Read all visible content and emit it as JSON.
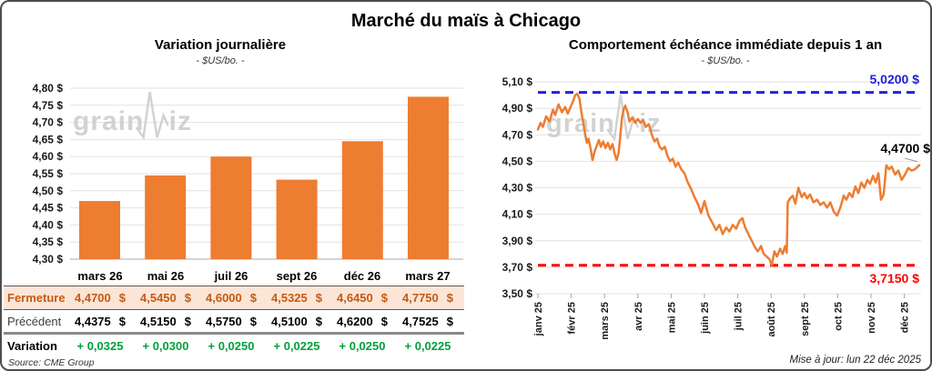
{
  "title": "Marché du maïs à Chicago",
  "watermark": {
    "prefix": "grain",
    "suffix": "iz"
  },
  "colors": {
    "orange": "#ED7D31",
    "peach": "#FBE5D6",
    "brown": "#C55A11",
    "green": "#00A03C",
    "blue": "#2222D6",
    "red": "#FF0000",
    "gridline": "#E2E2E2",
    "baseline": "#ABABAB",
    "tick": "#A6A6A6",
    "leader": "#999999",
    "watermark_gray": "#C8C8C8"
  },
  "left_panel": {
    "title": "Variation journalière",
    "subtitle": "- $US/bo. -",
    "source": "Source: CME Group",
    "table": {
      "columns": [
        "mars 26",
        "mai 26",
        "juil 26",
        "sept 26",
        "déc 26",
        "mars 27"
      ],
      "rows": [
        {
          "key": "fermeture",
          "label": "Fermeture",
          "values": [
            "4,4700 $",
            "4,5450 $",
            "4,6000 $",
            "4,5325 $",
            "4,6450 $",
            "4,7750 $"
          ]
        },
        {
          "key": "precedent",
          "label": "Précédent",
          "values": [
            "4,4375 $",
            "4,5150 $",
            "4,5750 $",
            "4,5100 $",
            "4,6200 $",
            "4,7525 $"
          ]
        },
        {
          "key": "variation",
          "label": "Variation",
          "values": [
            "+ 0,0325",
            "+ 0,0300",
            "+ 0,0250",
            "+ 0,0225",
            "+ 0,0250",
            "+ 0,0225"
          ]
        }
      ]
    }
  },
  "right_panel": {
    "title": "Comportement échéance immédiate depuis 1 an",
    "subtitle": "- $US/bo. -",
    "updated": "Mise à jour: lun 22 déc 2025",
    "annotations": {
      "resistance": "5,0200 $",
      "last": "4,4700 $",
      "support": "3,7150 $"
    }
  },
  "chart_data": [
    {
      "type": "bar",
      "title": "Variation journalière",
      "subtitle": "- $US/bo. -",
      "categories": [
        "mars 26",
        "mai 26",
        "juil 26",
        "sept 26",
        "déc 26",
        "mars 27"
      ],
      "values": [
        4.47,
        4.545,
        4.6,
        4.5325,
        4.645,
        4.775
      ],
      "xlabel": "",
      "ylabel": "$US/bo.",
      "ylim": [
        4.3,
        4.8
      ],
      "ytick_step": 0.05,
      "ytick_labels": [
        "4,80 $",
        "4,75 $",
        "4,70 $",
        "4,65 $",
        "4,60 $",
        "4,55 $",
        "4,50 $",
        "4,45 $",
        "4,40 $",
        "4,35 $",
        "4,30 $"
      ],
      "grid": true,
      "legend": false
    },
    {
      "type": "line",
      "title": "Comportement échéance immédiate depuis 1 an",
      "subtitle": "- $US/bo. -",
      "ylabel": "$US/bo.",
      "x_labels": [
        "janv 25",
        "févr 25",
        "mars 25",
        "avr 25",
        "mai 25",
        "juin 25",
        "juil 25",
        "août 25",
        "sept 25",
        "oct 25",
        "nov 25",
        "déc 25"
      ],
      "ylim": [
        3.5,
        5.1
      ],
      "ytick_step": 0.2,
      "ytick_labels": [
        "5,10 $",
        "4,90 $",
        "4,70 $",
        "4,50 $",
        "4,30 $",
        "4,10 $",
        "3,90 $",
        "3,70 $",
        "3,50 $"
      ],
      "resistance": 5.02,
      "support": 3.715,
      "last_value": 4.47,
      "grid": true,
      "legend": false,
      "points": [
        [
          0.0,
          4.74
        ],
        [
          0.08,
          4.79
        ],
        [
          0.15,
          4.76
        ],
        [
          0.25,
          4.84
        ],
        [
          0.35,
          4.8
        ],
        [
          0.45,
          4.89
        ],
        [
          0.52,
          4.85
        ],
        [
          0.62,
          4.93
        ],
        [
          0.72,
          4.87
        ],
        [
          0.82,
          4.91
        ],
        [
          0.9,
          4.86
        ],
        [
          0.98,
          4.91
        ],
        [
          1.05,
          4.95
        ],
        [
          1.12,
          5.0
        ],
        [
          1.18,
          5.01
        ],
        [
          1.25,
          4.97
        ],
        [
          1.3,
          4.88
        ],
        [
          1.36,
          4.79
        ],
        [
          1.42,
          4.7
        ],
        [
          1.47,
          4.64
        ],
        [
          1.52,
          4.67
        ],
        [
          1.58,
          4.6
        ],
        [
          1.64,
          4.51
        ],
        [
          1.71,
          4.58
        ],
        [
          1.77,
          4.62
        ],
        [
          1.83,
          4.66
        ],
        [
          1.89,
          4.61
        ],
        [
          1.96,
          4.65
        ],
        [
          2.03,
          4.6
        ],
        [
          2.1,
          4.64
        ],
        [
          2.17,
          4.59
        ],
        [
          2.24,
          4.63
        ],
        [
          2.3,
          4.56
        ],
        [
          2.36,
          4.51
        ],
        [
          2.42,
          4.56
        ],
        [
          2.47,
          4.68
        ],
        [
          2.52,
          4.82
        ],
        [
          2.57,
          4.89
        ],
        [
          2.62,
          4.92
        ],
        [
          2.69,
          4.87
        ],
        [
          2.75,
          4.8
        ],
        [
          2.83,
          4.83
        ],
        [
          2.92,
          4.79
        ],
        [
          3.0,
          4.82
        ],
        [
          3.08,
          4.79
        ],
        [
          3.16,
          4.81
        ],
        [
          3.24,
          4.76
        ],
        [
          3.33,
          4.78
        ],
        [
          3.42,
          4.7
        ],
        [
          3.5,
          4.65
        ],
        [
          3.58,
          4.67
        ],
        [
          3.65,
          4.61
        ],
        [
          3.73,
          4.59
        ],
        [
          3.81,
          4.61
        ],
        [
          3.89,
          4.54
        ],
        [
          3.97,
          4.5
        ],
        [
          4.05,
          4.52
        ],
        [
          4.13,
          4.46
        ],
        [
          4.21,
          4.49
        ],
        [
          4.3,
          4.44
        ],
        [
          4.4,
          4.41
        ],
        [
          4.5,
          4.34
        ],
        [
          4.6,
          4.29
        ],
        [
          4.7,
          4.23
        ],
        [
          4.8,
          4.18
        ],
        [
          4.9,
          4.11
        ],
        [
          5.0,
          4.2
        ],
        [
          5.12,
          4.09
        ],
        [
          5.25,
          4.03
        ],
        [
          5.35,
          3.98
        ],
        [
          5.45,
          4.02
        ],
        [
          5.55,
          3.95
        ],
        [
          5.65,
          4.0
        ],
        [
          5.75,
          3.97
        ],
        [
          5.85,
          4.02
        ],
        [
          5.95,
          3.99
        ],
        [
          6.05,
          4.05
        ],
        [
          6.14,
          4.07
        ],
        [
          6.22,
          4.0
        ],
        [
          6.32,
          3.95
        ],
        [
          6.42,
          3.9
        ],
        [
          6.52,
          3.85
        ],
        [
          6.6,
          3.82
        ],
        [
          6.7,
          3.86
        ],
        [
          6.78,
          3.8
        ],
        [
          6.87,
          3.78
        ],
        [
          6.95,
          3.76
        ],
        [
          7.02,
          3.715
        ],
        [
          7.1,
          3.82
        ],
        [
          7.18,
          3.78
        ],
        [
          7.27,
          3.84
        ],
        [
          7.35,
          3.8
        ],
        [
          7.42,
          3.86
        ],
        [
          7.47,
          3.81
        ],
        [
          7.5,
          4.19
        ],
        [
          7.57,
          4.22
        ],
        [
          7.65,
          4.24
        ],
        [
          7.73,
          4.18
        ],
        [
          7.82,
          4.3
        ],
        [
          7.92,
          4.23
        ],
        [
          8.0,
          4.26
        ],
        [
          8.08,
          4.22
        ],
        [
          8.17,
          4.25
        ],
        [
          8.27,
          4.19
        ],
        [
          8.38,
          4.21
        ],
        [
          8.48,
          4.17
        ],
        [
          8.58,
          4.19
        ],
        [
          8.68,
          4.15
        ],
        [
          8.78,
          4.19
        ],
        [
          8.88,
          4.12
        ],
        [
          8.98,
          4.09
        ],
        [
          9.08,
          4.15
        ],
        [
          9.18,
          4.24
        ],
        [
          9.26,
          4.21
        ],
        [
          9.35,
          4.26
        ],
        [
          9.44,
          4.23
        ],
        [
          9.53,
          4.31
        ],
        [
          9.62,
          4.26
        ],
        [
          9.71,
          4.34
        ],
        [
          9.8,
          4.3
        ],
        [
          9.89,
          4.36
        ],
        [
          9.97,
          4.33
        ],
        [
          10.06,
          4.39
        ],
        [
          10.14,
          4.34
        ],
        [
          10.22,
          4.41
        ],
        [
          10.3,
          4.21
        ],
        [
          10.38,
          4.25
        ],
        [
          10.46,
          4.47
        ],
        [
          10.54,
          4.44
        ],
        [
          10.62,
          4.46
        ],
        [
          10.72,
          4.4
        ],
        [
          10.82,
          4.43
        ],
        [
          10.92,
          4.36
        ],
        [
          11.02,
          4.4
        ],
        [
          11.12,
          4.45
        ],
        [
          11.22,
          4.43
        ],
        [
          11.32,
          4.44
        ],
        [
          11.45,
          4.47
        ]
      ]
    }
  ]
}
